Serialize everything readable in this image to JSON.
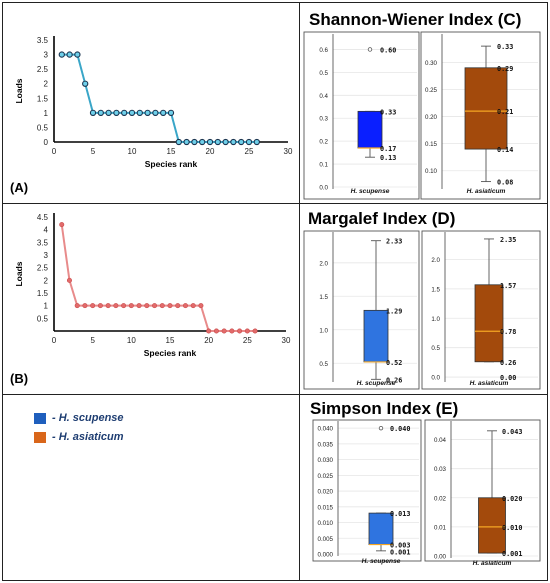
{
  "panels": {
    "A": "(A)",
    "B": "(B)",
    "C_title": "Shannon-Wiener Index (C)",
    "D_title": "Margalef Index (D)",
    "E_title": "Simpson Index (E)"
  },
  "legend": [
    {
      "label": "- H. scupense",
      "color": "#1f5fbd"
    },
    {
      "label": "- H. asiaticum",
      "color": "#d9661a"
    }
  ],
  "chart_data": [
    {
      "id": "A",
      "type": "line",
      "xlabel": "Species rank",
      "ylabel": "Loads",
      "xlim": [
        0,
        30
      ],
      "ylim": [
        0,
        3.5
      ],
      "xticks": [
        "0",
        "5",
        "10",
        "15",
        "20",
        "25",
        "30"
      ],
      "yticks": [
        "0",
        "0.5",
        "1",
        "1.5",
        "2",
        "2.5",
        "3",
        "3.5"
      ],
      "color": "#3aa6c8",
      "x": [
        1,
        2,
        3,
        4,
        5,
        6,
        7,
        8,
        9,
        10,
        11,
        12,
        13,
        14,
        15,
        16,
        17,
        18,
        19,
        20,
        21,
        22,
        23,
        24,
        25,
        26
      ],
      "y": [
        3,
        3,
        3,
        2,
        1,
        1,
        1,
        1,
        1,
        1,
        1,
        1,
        1,
        1,
        1,
        0,
        0,
        0,
        0,
        0,
        0,
        0,
        0,
        0,
        0,
        0
      ]
    },
    {
      "id": "B",
      "type": "line",
      "xlabel": "Species rank",
      "ylabel": "Loads",
      "xlim": [
        0,
        30
      ],
      "ylim": [
        0,
        4.5
      ],
      "xticks": [
        "0",
        "5",
        "10",
        "15",
        "20",
        "25",
        "30"
      ],
      "yticks": [
        "0.5",
        "1",
        "1.5",
        "2",
        "2.5",
        "3",
        "3.5",
        "4",
        "4.5"
      ],
      "color": "#e88b8b",
      "x": [
        1,
        2,
        3,
        4,
        5,
        6,
        7,
        8,
        9,
        10,
        11,
        12,
        13,
        14,
        15,
        16,
        17,
        18,
        19,
        20,
        21,
        22,
        23,
        24,
        25,
        26
      ],
      "y": [
        4.2,
        2,
        1,
        1,
        1,
        1,
        1,
        1,
        1,
        1,
        1,
        1,
        1,
        1,
        1,
        1,
        1,
        1,
        1,
        0,
        0,
        0,
        0,
        0,
        0,
        0
      ]
    },
    {
      "id": "C",
      "type": "box",
      "boxes": [
        {
          "name": "H. scupense",
          "color": "#0a1fff",
          "ylim": [
            0,
            0.65
          ],
          "yticks": [
            "0.0",
            "0.1",
            "0.2",
            "0.3",
            "0.4",
            "0.5",
            "0.6"
          ],
          "min": 0.13,
          "q1": 0.17,
          "median": 0.17,
          "q3": 0.33,
          "max": 0.33,
          "outliers": [
            0.6
          ],
          "labels": [
            "0.60",
            "0.33",
            "0.17",
            "0.13"
          ]
        },
        {
          "name": "H. asiaticum",
          "color": "#a34a0c",
          "ylim": [
            0.07,
            0.345
          ],
          "yticks": [
            "0.10",
            "0.15",
            "0.20",
            "0.25",
            "0.30"
          ],
          "min": 0.08,
          "q1": 0.14,
          "median": 0.21,
          "q3": 0.29,
          "max": 0.33,
          "outliers": [],
          "labels": [
            "0.33",
            "0.29",
            "0.21",
            "0.14",
            "0.08"
          ]
        }
      ]
    },
    {
      "id": "D",
      "type": "box",
      "boxes": [
        {
          "name": "H. scupense",
          "color": "#2f74e0",
          "ylim": [
            0.25,
            2.4
          ],
          "yticks": [
            "0.5",
            "1.0",
            "1.5",
            "2.0"
          ],
          "min": 0.26,
          "q1": 0.52,
          "median": 0.52,
          "q3": 1.29,
          "max": 2.33,
          "outliers": [],
          "labels": [
            "2.33",
            "1.29",
            "0.52",
            "0.26"
          ]
        },
        {
          "name": "H. asiaticum",
          "color": "#a34a0c",
          "ylim": [
            -0.05,
            2.4
          ],
          "yticks": [
            "0.0",
            "0.5",
            "1.0",
            "1.5",
            "2.0"
          ],
          "min": 0.26,
          "q1": 0.26,
          "median": 0.78,
          "q3": 1.57,
          "max": 2.35,
          "outliers": [],
          "labels": [
            "2.35",
            "1.57",
            "0.78",
            "0.26",
            "0.00"
          ]
        }
      ]
    },
    {
      "id": "E",
      "type": "box",
      "boxes": [
        {
          "name": "H. scupense",
          "color": "#2f74e0",
          "ylim": [
            0,
            0.041
          ],
          "yticks": [
            "0.000",
            "0.005",
            "0.010",
            "0.015",
            "0.020",
            "0.025",
            "0.030",
            "0.035",
            "0.040"
          ],
          "min": 0.001,
          "q1": 0.003,
          "median": 0.003,
          "q3": 0.013,
          "max": 0.013,
          "outliers": [
            0.04
          ],
          "labels": [
            "0.040",
            "0.013",
            "0.003",
            "0.001"
          ]
        },
        {
          "name": "H. asiaticum",
          "color": "#a34a0c",
          "ylim": [
            0,
            0.045
          ],
          "yticks": [
            "0.00",
            "0.01",
            "0.02",
            "0.03",
            "0.04"
          ],
          "min": 0.001,
          "q1": 0.001,
          "median": 0.01,
          "q3": 0.02,
          "max": 0.043,
          "outliers": [],
          "labels": [
            "0.043",
            "0.020",
            "0.010",
            "0.001"
          ]
        }
      ]
    }
  ]
}
